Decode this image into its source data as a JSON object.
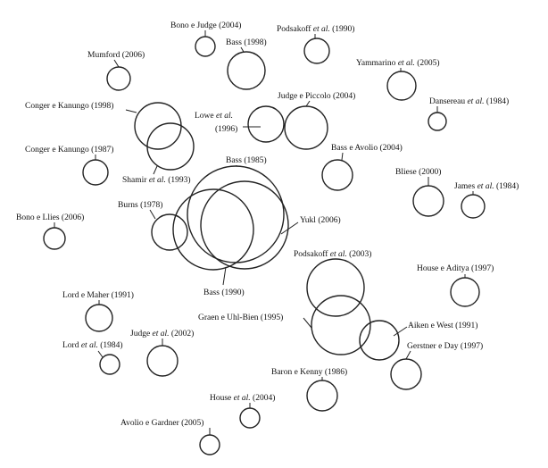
{
  "diagram": {
    "nodes": [
      {
        "id": "bono-judge-2004",
        "label": [
          {
            "t": "Bono e Judge (2004)"
          }
        ]
      },
      {
        "id": "podsakoff-1990",
        "label": [
          {
            "t": "Podsakoff "
          },
          {
            "t": "et al.",
            "i": true
          },
          {
            "t": " (1990)"
          }
        ]
      },
      {
        "id": "bass-1998",
        "label": [
          {
            "t": "Bass (1998)"
          }
        ]
      },
      {
        "id": "mumford-2006",
        "label": [
          {
            "t": "Mumford (2006)"
          }
        ]
      },
      {
        "id": "yammarino-2005",
        "label": [
          {
            "t": "Yammarino "
          },
          {
            "t": "et al.",
            "i": true
          },
          {
            "t": " (2005)"
          }
        ]
      },
      {
        "id": "conger-kanungo-1998",
        "label": [
          {
            "t": "Conger e Kanungo (1998)"
          }
        ]
      },
      {
        "id": "judge-piccolo-2004",
        "label": [
          {
            "t": "Judge e Piccolo (2004)"
          }
        ]
      },
      {
        "id": "dansereau-1984",
        "label": [
          {
            "t": "Dansereau "
          },
          {
            "t": "et al.",
            "i": true
          },
          {
            "t": " (1984)"
          }
        ]
      },
      {
        "id": "lowe-1996",
        "label": [
          {
            "t": "Lowe "
          },
          {
            "t": "et al.",
            "i": true
          }
        ],
        "label2": [
          {
            "t": "(1996)"
          }
        ]
      },
      {
        "id": "conger-kanungo-1987",
        "label": [
          {
            "t": "Conger e Kanungo (1987)"
          }
        ]
      },
      {
        "id": "bass-avolio-2004",
        "label": [
          {
            "t": "Bass e Avolio (2004)"
          }
        ]
      },
      {
        "id": "shamir-1993",
        "label": [
          {
            "t": "Shamir "
          },
          {
            "t": "et al.",
            "i": true
          },
          {
            "t": " (1993)"
          }
        ]
      },
      {
        "id": "bass-1985",
        "label": [
          {
            "t": "Bass (1985)"
          }
        ]
      },
      {
        "id": "bliese-2000",
        "label": [
          {
            "t": "Bliese (2000)"
          }
        ]
      },
      {
        "id": "james-1984",
        "label": [
          {
            "t": "James "
          },
          {
            "t": "et al.",
            "i": true
          },
          {
            "t": " (1984)"
          }
        ]
      },
      {
        "id": "burns-1978",
        "label": [
          {
            "t": "Burns (1978)"
          }
        ]
      },
      {
        "id": "yukl-2006",
        "label": [
          {
            "t": "Yukl (2006)"
          }
        ]
      },
      {
        "id": "bono-llies-2006",
        "label": [
          {
            "t": "Bono e Llies (2006)"
          }
        ]
      },
      {
        "id": "podsakoff-2003",
        "label": [
          {
            "t": "Podsakoff "
          },
          {
            "t": "et al.",
            "i": true
          },
          {
            "t": " (2003)"
          }
        ]
      },
      {
        "id": "bass-1990",
        "label": [
          {
            "t": "Bass (1990)"
          }
        ]
      },
      {
        "id": "house-aditya-1997",
        "label": [
          {
            "t": "House e Aditya (1997)"
          }
        ]
      },
      {
        "id": "lord-maher-1991",
        "label": [
          {
            "t": "Lord e Maher (1991)"
          }
        ]
      },
      {
        "id": "graen-uhl-bien-1995",
        "label": [
          {
            "t": "Graen e Uhl-Bien (1995)"
          }
        ]
      },
      {
        "id": "aiken-west-1991",
        "label": [
          {
            "t": "Aiken e West (1991)"
          }
        ]
      },
      {
        "id": "judge-2002",
        "label": [
          {
            "t": "Judge "
          },
          {
            "t": "et al.",
            "i": true
          },
          {
            "t": " (2002)"
          }
        ]
      },
      {
        "id": "lord-1984",
        "label": [
          {
            "t": "Lord "
          },
          {
            "t": "et al.",
            "i": true
          },
          {
            "t": " (1984)"
          }
        ]
      },
      {
        "id": "gerstner-day-1997",
        "label": [
          {
            "t": "Gerstner e Day (1997)"
          }
        ]
      },
      {
        "id": "baron-kenny-1986",
        "label": [
          {
            "t": "Baron e Kenny (1986)"
          }
        ]
      },
      {
        "id": "house-2004",
        "label": [
          {
            "t": "House "
          },
          {
            "t": "et al.",
            "i": true
          },
          {
            "t": " (2004)"
          }
        ]
      },
      {
        "id": "avolio-gardner-2005",
        "label": [
          {
            "t": "Avolio e Gardner (2005)"
          }
        ]
      }
    ]
  }
}
